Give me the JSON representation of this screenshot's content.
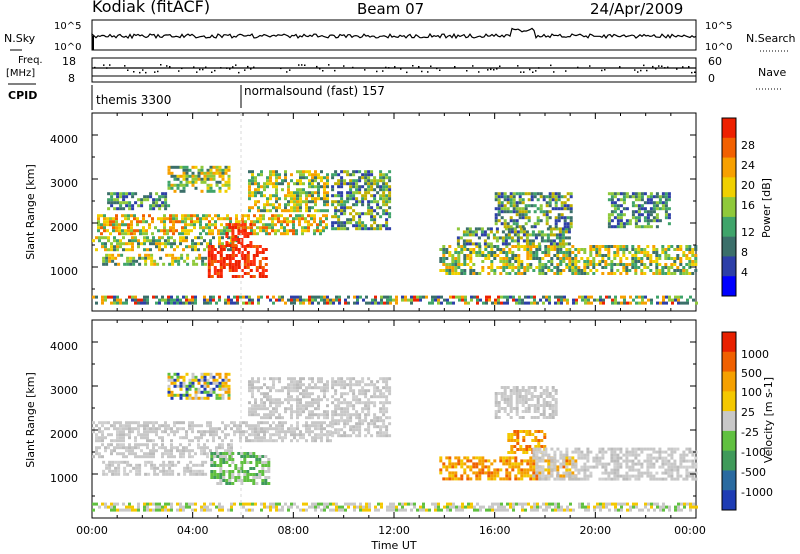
{
  "header": {
    "title": "Kodiak (fitACF)",
    "beam": "Beam 07",
    "date": "24/Apr/2009"
  },
  "strips": {
    "nsky_label": "N.Sky",
    "nsearch_label": "N.Search",
    "noise_ticks": [
      "10^5",
      "10^0"
    ],
    "freq_label_1": "Freq.",
    "freq_label_2": "[MHz]",
    "freq_ticks": [
      "18",
      "8"
    ],
    "nave_label": "Nave",
    "nave_ticks": [
      "60",
      "0"
    ],
    "cpid_label": "CPID",
    "cpid_segments": [
      {
        "name": "themis 3300",
        "start_hour": 0,
        "end_hour": 6
      },
      {
        "name": "normalsound (fast) 157",
        "start_hour": 6,
        "end_hour": 24
      }
    ]
  },
  "chart_data": [
    {
      "type": "heatmap",
      "panel": "power",
      "xlabel": "",
      "ylabel": "Slant Range [km]",
      "xlim": [
        0,
        24
      ],
      "ylim": [
        0,
        4500
      ],
      "yticks": [
        1000,
        2000,
        3000,
        4000
      ],
      "colorbar": {
        "label": "Power [dB]",
        "ticks": [
          "28",
          "24",
          "20",
          "16",
          "12",
          "8",
          "4"
        ],
        "colors": [
          "#0000ff",
          "#2d3fa8",
          "#3b6f6a",
          "#3fa46a",
          "#8fc93a",
          "#f0d000",
          "#f7a000",
          "#f26000",
          "#ee2000"
        ]
      },
      "regions": [
        {
          "t0": 0.0,
          "t1": 5.8,
          "r0": 1400,
          "r1": 1700,
          "level": "mid"
        },
        {
          "t0": 0.2,
          "t1": 9.3,
          "r0": 1750,
          "r1": 2200,
          "level": "high"
        },
        {
          "t0": 0.4,
          "t1": 4.5,
          "r0": 1050,
          "r1": 1300,
          "level": "mid"
        },
        {
          "t0": 0.6,
          "t1": 3.0,
          "r0": 2300,
          "r1": 2700,
          "level": "low"
        },
        {
          "t0": 3.0,
          "t1": 5.5,
          "r0": 2700,
          "r1": 3300,
          "level": "mid"
        },
        {
          "t0": 4.6,
          "t1": 6.9,
          "r0": 800,
          "r1": 1500,
          "level": "strong"
        },
        {
          "t0": 5.3,
          "t1": 6.3,
          "r0": 1500,
          "r1": 2000,
          "level": "strong"
        },
        {
          "t0": 6.2,
          "t1": 9.3,
          "r0": 2300,
          "r1": 3200,
          "level": "mid"
        },
        {
          "t0": 9.5,
          "t1": 11.8,
          "r0": 1900,
          "r1": 3200,
          "level": "lowmid"
        },
        {
          "t0": 13.8,
          "t1": 24.0,
          "r0": 850,
          "r1": 1500,
          "level": "mid"
        },
        {
          "t0": 14.5,
          "t1": 19.0,
          "r0": 1500,
          "r1": 1900,
          "level": "lowmid"
        },
        {
          "t0": 16.0,
          "t1": 19.0,
          "r0": 1900,
          "r1": 2700,
          "level": "lowmid"
        },
        {
          "t0": 20.5,
          "t1": 23.0,
          "r0": 1900,
          "r1": 2700,
          "level": "low"
        },
        {
          "t0": 0.0,
          "t1": 24.0,
          "r0": 150,
          "r1": 350,
          "level": "near"
        }
      ]
    },
    {
      "type": "heatmap",
      "panel": "velocity",
      "xlabel": "Time UT",
      "ylabel": "Slant Range [km]",
      "xlim": [
        0,
        24
      ],
      "ylim": [
        0,
        4500
      ],
      "yticks": [
        1000,
        2000,
        3000,
        4000
      ],
      "xticks": [
        "00:00",
        "04:00",
        "08:00",
        "12:00",
        "16:00",
        "20:00",
        "00:00"
      ],
      "colorbar": {
        "label": "Velocity [m s-1]",
        "ticks": [
          "1000",
          "500",
          "100",
          "25",
          "-25",
          "-100",
          "-500",
          "-1000"
        ],
        "colors": [
          "#1e3cb4",
          "#2a6aa0",
          "#3f9a5a",
          "#60c040",
          "#c8c8c8",
          "#f4c800",
          "#f5a000",
          "#f06000",
          "#e82000"
        ]
      },
      "regions": [
        {
          "t0": 0.0,
          "t1": 9.5,
          "r0": 1750,
          "r1": 2200,
          "level": "gray"
        },
        {
          "t0": 0.0,
          "t1": 5.5,
          "r0": 1400,
          "r1": 1700,
          "level": "gray"
        },
        {
          "t0": 0.4,
          "t1": 4.5,
          "r0": 1000,
          "r1": 1300,
          "level": "gray"
        },
        {
          "t0": 4.7,
          "t1": 7.0,
          "r0": 800,
          "r1": 1500,
          "level": "green"
        },
        {
          "t0": 3.0,
          "t1": 5.5,
          "r0": 2700,
          "r1": 3300,
          "level": "mixed"
        },
        {
          "t0": 6.2,
          "t1": 9.3,
          "r0": 2300,
          "r1": 3200,
          "level": "gray"
        },
        {
          "t0": 9.5,
          "t1": 11.8,
          "r0": 1900,
          "r1": 3200,
          "level": "gray"
        },
        {
          "t0": 13.8,
          "t1": 19.2,
          "r0": 900,
          "r1": 1400,
          "level": "orange"
        },
        {
          "t0": 16.5,
          "t1": 18.0,
          "r0": 1500,
          "r1": 2000,
          "level": "orange"
        },
        {
          "t0": 17.5,
          "t1": 24.0,
          "r0": 900,
          "r1": 1600,
          "level": "gray"
        },
        {
          "t0": 16.0,
          "t1": 18.5,
          "r0": 2300,
          "r1": 3000,
          "level": "gray"
        },
        {
          "t0": 0.0,
          "t1": 24.0,
          "r0": 150,
          "r1": 350,
          "level": "near"
        }
      ]
    }
  ]
}
